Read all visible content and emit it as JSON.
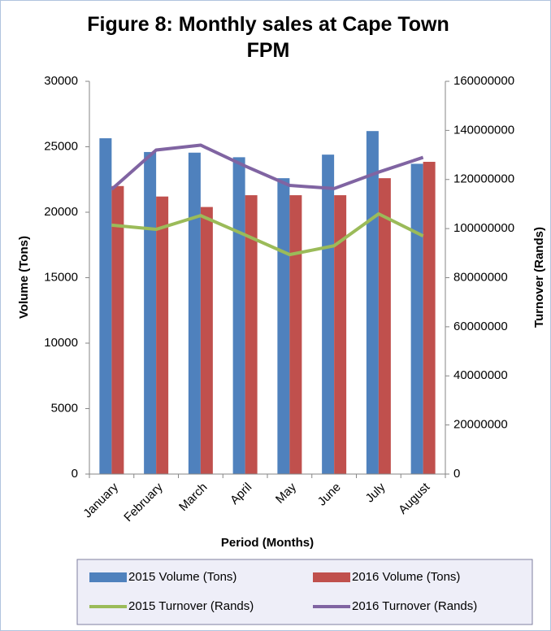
{
  "chart_data": {
    "type": "bar_line",
    "title": "Figure 8: Monthly sales at Cape Town FPM",
    "x_label": "Period (Months)",
    "y_label": "Volume (Tons)",
    "y2_label": "Turnover (Rands)",
    "categories": [
      "January",
      "February",
      "March",
      "April",
      "May",
      "June",
      "July",
      "August"
    ],
    "ylim": [
      0,
      30000
    ],
    "yticks": [
      0,
      5000,
      10000,
      15000,
      20000,
      25000,
      30000
    ],
    "y2lim": [
      0,
      160000000
    ],
    "y2ticks": [
      0,
      20000000,
      40000000,
      60000000,
      80000000,
      100000000,
      120000000,
      140000000,
      160000000
    ],
    "grid": false,
    "series": [
      {
        "name": "2015 Volume (Tons)",
        "type": "bar",
        "color": "#4f81bd",
        "values": [
          25650,
          24600,
          24550,
          24200,
          22600,
          24400,
          26200,
          23700
        ]
      },
      {
        "name": "2016 Volume (Tons)",
        "type": "bar",
        "color": "#c0504d",
        "values": [
          22000,
          21200,
          20400,
          21300,
          21300,
          21300,
          22600,
          23850
        ]
      },
      {
        "name": "2015 Turnover (Rands)",
        "type": "line",
        "axis": "y2",
        "color": "#9bbb59",
        "values": [
          101400000,
          99700000,
          105300000,
          97400000,
          89400000,
          93000000,
          106000000,
          97000000
        ]
      },
      {
        "name": "2016 Turnover (Rands)",
        "type": "line",
        "axis": "y2",
        "color": "#8064a2",
        "values": [
          116000000,
          132000000,
          134000000,
          125500000,
          117600000,
          116300000,
          123000000,
          129000000
        ]
      }
    ]
  }
}
